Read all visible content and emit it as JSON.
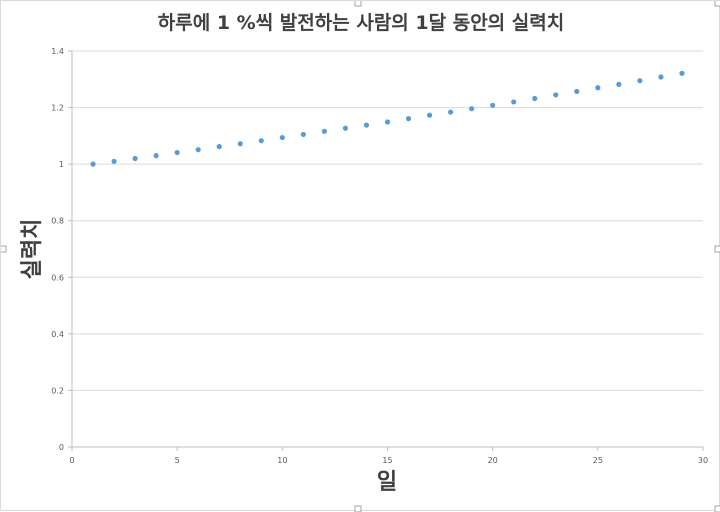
{
  "chart_data": {
    "type": "scatter",
    "title": "하루에 1 %씩 발전하는 사람의 1달 동안의 실력치",
    "xlabel": "일",
    "ylabel": "실력치",
    "xlim": [
      0,
      30
    ],
    "ylim": [
      0,
      1.4
    ],
    "x_ticks": [
      "0",
      "5",
      "10",
      "15",
      "20",
      "25",
      "30"
    ],
    "y_ticks": [
      "0",
      "0.2",
      "0.4",
      "0.6",
      "0.8",
      "1",
      "1.2",
      "1.4"
    ],
    "grid": true,
    "legend": "none",
    "marker_color": "#5b9bd5",
    "series": [
      {
        "x": [
          1,
          2,
          3,
          4,
          5,
          6,
          7,
          8,
          9,
          10,
          11,
          12,
          13,
          14,
          15,
          16,
          17,
          18,
          19,
          20,
          21,
          22,
          23,
          24,
          25,
          26,
          27,
          28,
          29
        ],
        "values": [
          1,
          1.01,
          1.02,
          1.03,
          1.041,
          1.051,
          1.062,
          1.072,
          1.083,
          1.094,
          1.105,
          1.116,
          1.127,
          1.138,
          1.149,
          1.161,
          1.173,
          1.184,
          1.196,
          1.208,
          1.22,
          1.232,
          1.245,
          1.257,
          1.27,
          1.282,
          1.295,
          1.308,
          1.321
        ]
      }
    ]
  }
}
